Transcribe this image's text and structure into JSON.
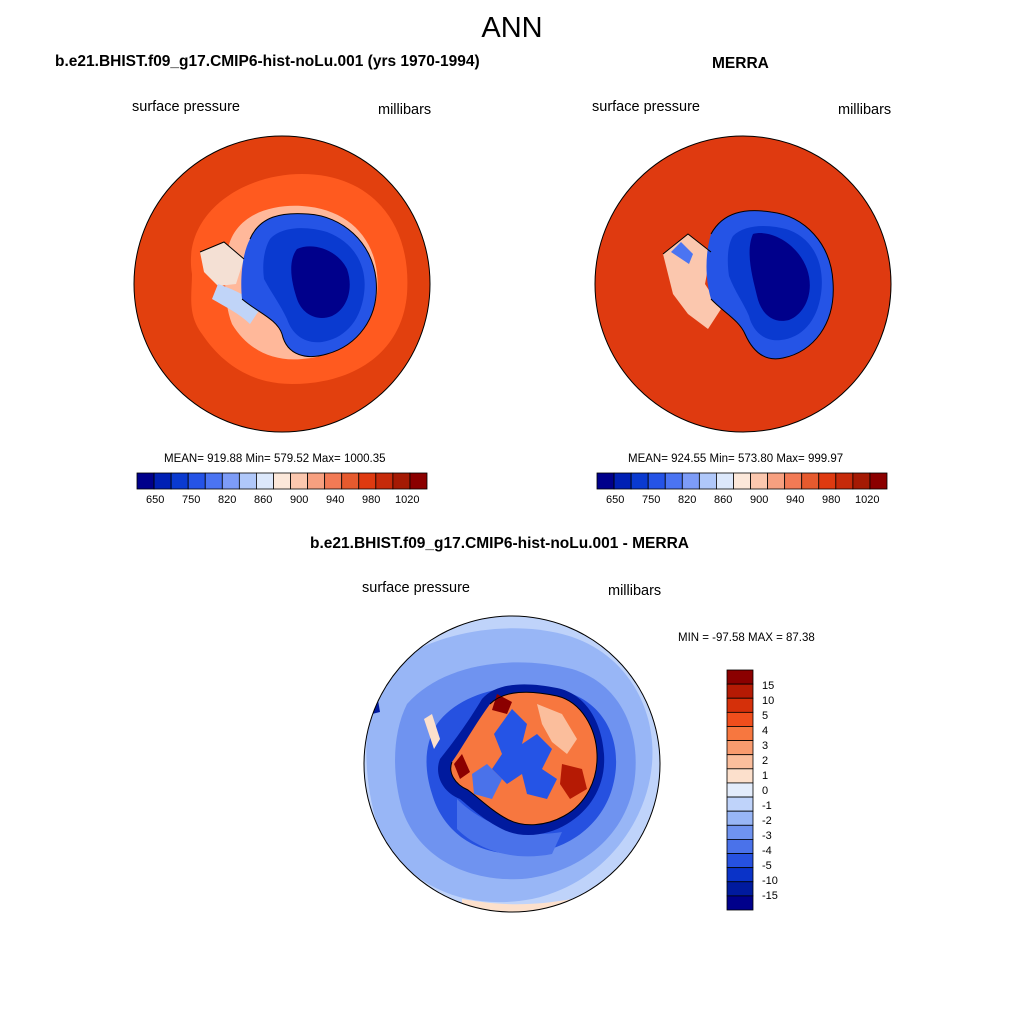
{
  "figure": {
    "title": "ANN"
  },
  "colors": {
    "contour_levels": [
      "#00008B",
      "#0020B4",
      "#0A3AD0",
      "#2553E6",
      "#4B74F2",
      "#7D9CF7",
      "#B0C8FA",
      "#DCE8FB",
      "#FCE8DA",
      "#FBC7AE",
      "#F7A080",
      "#F27A55",
      "#E65A2E",
      "#DF3A10",
      "#C62A0A",
      "#A51A04",
      "#8B0000"
    ],
    "coast": "#000000"
  },
  "panels": [
    {
      "id": "model",
      "title": "b.e21.BHIST.f09_g17.CMIP6-hist-noLu.001 (yrs 1970-1994)",
      "left_label": "surface pressure",
      "right_label": "millibars",
      "stats": "MEAN= 919.88  Min= 579.52  Max= 1000.35",
      "colorbar_ticks": [
        "650",
        "750",
        "820",
        "860",
        "900",
        "940",
        "980",
        "1020"
      ]
    },
    {
      "id": "obs",
      "title": "MERRA",
      "left_label": "surface pressure",
      "right_label": "millibars",
      "stats": "MEAN= 924.55  Min= 573.80  Max= 999.97",
      "colorbar_ticks": [
        "650",
        "750",
        "820",
        "860",
        "900",
        "940",
        "980",
        "1020"
      ]
    },
    {
      "id": "diff",
      "title": "b.e21.BHIST.f09_g17.CMIP6-hist-noLu.001 - MERRA",
      "left_label": "surface pressure",
      "right_label": "millibars",
      "stats": "MIN = -97.58 MAX =  87.38",
      "colorbar_ticks": [
        "15",
        "10",
        "5",
        "4",
        "3",
        "2",
        "1",
        "0",
        "-1",
        "-2",
        "-3",
        "-4",
        "-5",
        "-10",
        "-15"
      ],
      "colorbar_colors": [
        "#8B0000",
        "#B51A04",
        "#D5300A",
        "#F04E1C",
        "#F7773F",
        "#F99B6E",
        "#FBBE9C",
        "#FCE0CC",
        "#E3ECFB",
        "#BFD3FA",
        "#98B6F6",
        "#6F93F0",
        "#4A72EA",
        "#2651E0",
        "#0A33C8",
        "#001A9E",
        "#00008B"
      ]
    }
  ]
}
